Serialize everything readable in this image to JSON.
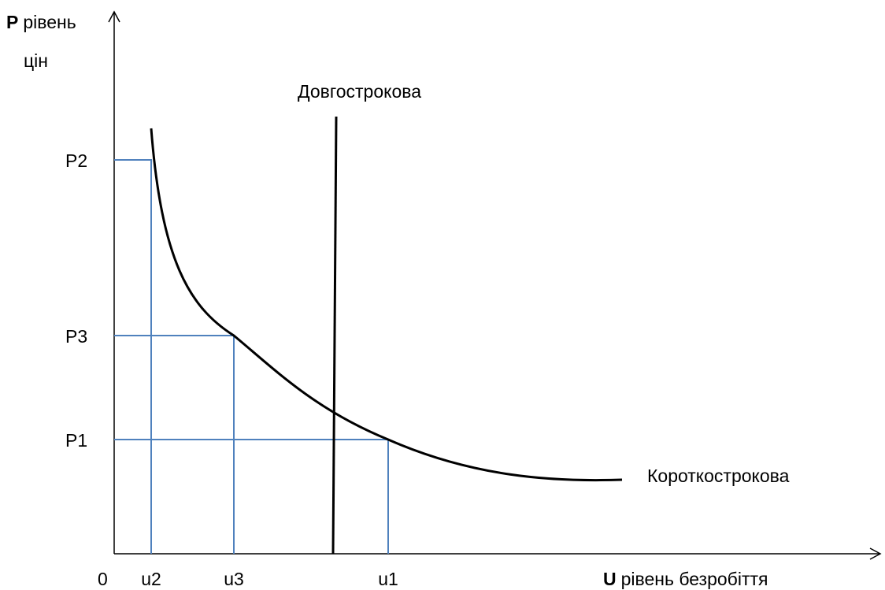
{
  "axes": {
    "y": {
      "symbol": "P",
      "label": "рівень",
      "label_line2": "цін"
    },
    "x": {
      "symbol": "U",
      "label": "рівень безробіття"
    },
    "origin": "0"
  },
  "y_ticks": [
    "P2",
    "P3",
    "P1"
  ],
  "x_ticks": [
    "u2",
    "u3",
    "u1"
  ],
  "curves": {
    "long_run": "Довгострокова",
    "short_run": "Короткострокова"
  }
}
